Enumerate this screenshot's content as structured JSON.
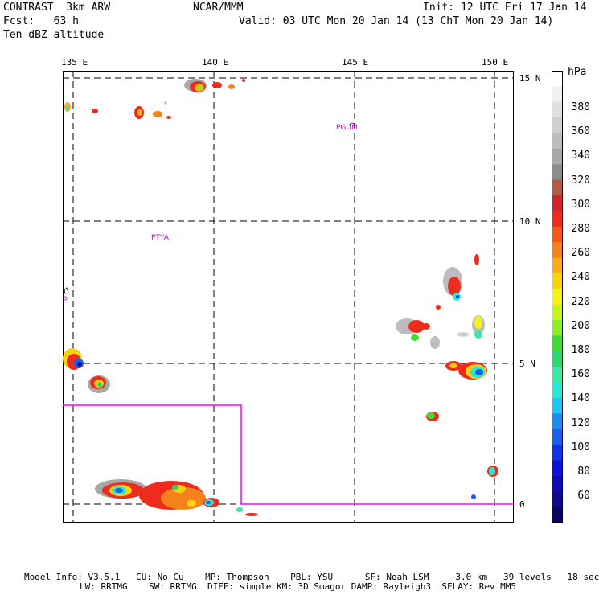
{
  "header": {
    "line1_left": "CONTRAST  3km ARW",
    "line1_center": "NCAR/MMM",
    "line1_right": "Init: 12 UTC Fri 17 Jan 14",
    "line2_left": "Fcst:   63 h",
    "line2_right": "Valid: 03 UTC Mon 20 Jan 14 (13 ChT Mon 20 Jan 14)",
    "line3_left": "Ten-dBZ altitude"
  },
  "map": {
    "lon_labels": [
      "135 E",
      "140 E",
      "145 E",
      "150 E"
    ],
    "lat_labels": [
      "15 N",
      "10 N",
      "5 N",
      "0"
    ],
    "station_labels": [
      "PGUM",
      "PTYA"
    ],
    "domain_box_color": "#ff00ff"
  },
  "colorbar": {
    "unit": "hPa",
    "labels": [
      "380",
      "360",
      "340",
      "320",
      "300",
      "280",
      "260",
      "240",
      "220",
      "200",
      "180",
      "160",
      "140",
      "120",
      "100",
      "80",
      "60"
    ],
    "colors": [
      "#ffffff",
      "#f0f0f0",
      "#e0e0e0",
      "#cfcfcf",
      "#bdbdbd",
      "#a8a8a8",
      "#8c8c8c",
      "#b45a4b",
      "#d1242d",
      "#ef2b1e",
      "#f25a14",
      "#f7821c",
      "#f9ad1a",
      "#f7d30e",
      "#f5f21a",
      "#c8f31e",
      "#8ded29",
      "#3fdd32",
      "#2bd774",
      "#3de6a9",
      "#2ae6d6",
      "#20c5f3",
      "#1a8ff0",
      "#1760e9",
      "#1131e5",
      "#0e11d9",
      "#0f0bb3",
      "#0e098a",
      "#0a0660"
    ]
  },
  "footer": {
    "line1": "Model Info: V3.5.1   CU: No Cu    MP: Thompson    PBL: YSU      SF: Noah LSM     3.0 km   39 levels   18 sec",
    "line2": "LW: RRTMG    SW: RRTMG  DIFF: simple KM: 3D Smagor DAMP: Rayleigh3  SFLAY: Rev MM5"
  }
}
